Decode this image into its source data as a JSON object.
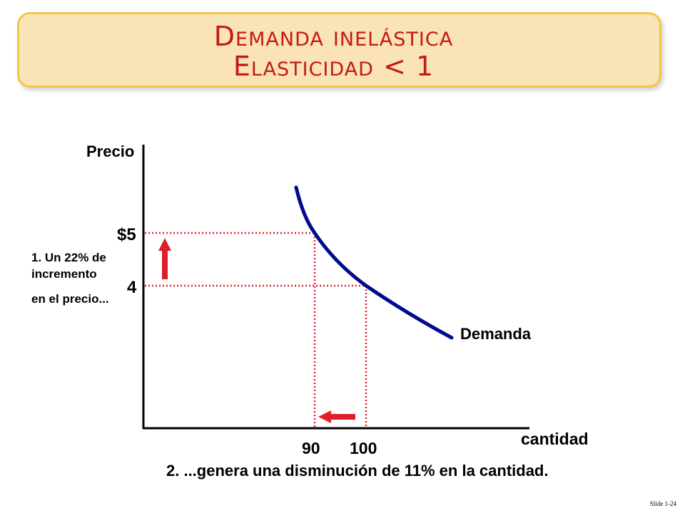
{
  "title": {
    "line1": "Demanda inelástica",
    "line2": "Elasticidad < 1"
  },
  "axes": {
    "y_label": "Precio",
    "x_label": "cantidad"
  },
  "price_ticks": [
    "$5",
    "4"
  ],
  "quantity_ticks": [
    "90",
    "100"
  ],
  "curve_label": "Demanda",
  "annotation_price": [
    "1. Un 22% de",
    "incremento",
    "en el precio..."
  ],
  "annotation_quantity": "2. ...genera una disminución de 11% en la cantidad.",
  "colors": {
    "curve": "#000a8c",
    "guides": "#e01e2b",
    "arrows": "#e01e2b",
    "title_text": "#c3191a",
    "title_bg": "#fae3b4",
    "title_border": "#f2c744"
  },
  "slide_number": "Slide 1-24"
}
